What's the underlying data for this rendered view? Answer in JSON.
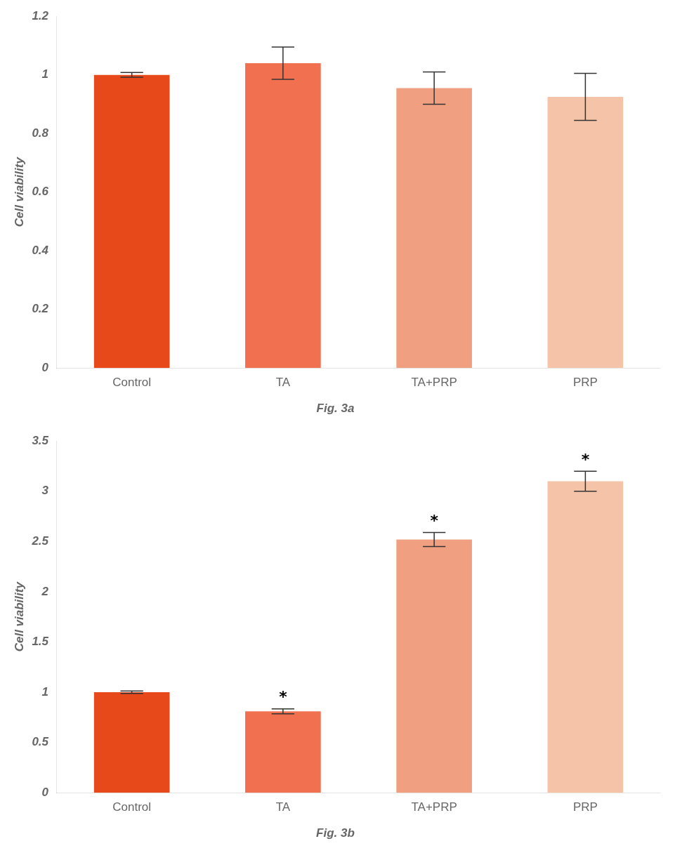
{
  "chart_data": [
    {
      "type": "bar",
      "title": "Fig. 3a",
      "categories": [
        "Control",
        "TA",
        "TA+PRP",
        "PRP"
      ],
      "values": [
        1.0,
        1.04,
        0.955,
        0.925
      ],
      "errors": [
        0.008,
        0.055,
        0.055,
        0.08
      ],
      "colors": [
        "#E8491A",
        "#F07050",
        "#F0A080",
        "#F5C4A8"
      ],
      "ylabel": "Cell viability",
      "ylim": [
        0,
        1.2
      ],
      "yticks": [
        0,
        0.2,
        0.4,
        0.6,
        0.8,
        1,
        1.2
      ],
      "grid": false,
      "legend": "none"
    },
    {
      "type": "bar",
      "title": "Fig. 3b",
      "categories": [
        "Control",
        "TA",
        "TA+PRP",
        "PRP"
      ],
      "values": [
        1.0,
        0.81,
        2.52,
        3.1
      ],
      "errors": [
        0.012,
        0.025,
        0.07,
        0.1
      ],
      "colors": [
        "#E8491A",
        "#F07050",
        "#F0A080",
        "#F5C4A8"
      ],
      "ylabel": "Cell viability",
      "ylim": [
        0,
        3.5
      ],
      "yticks": [
        0,
        0.5,
        1,
        1.5,
        2,
        2.5,
        3,
        3.5
      ],
      "annotations": [
        {
          "category": "TA",
          "text": "*"
        },
        {
          "category": "TA+PRP",
          "text": "*"
        },
        {
          "category": "PRP",
          "text": "*"
        }
      ],
      "grid": false,
      "legend": "none"
    }
  ]
}
